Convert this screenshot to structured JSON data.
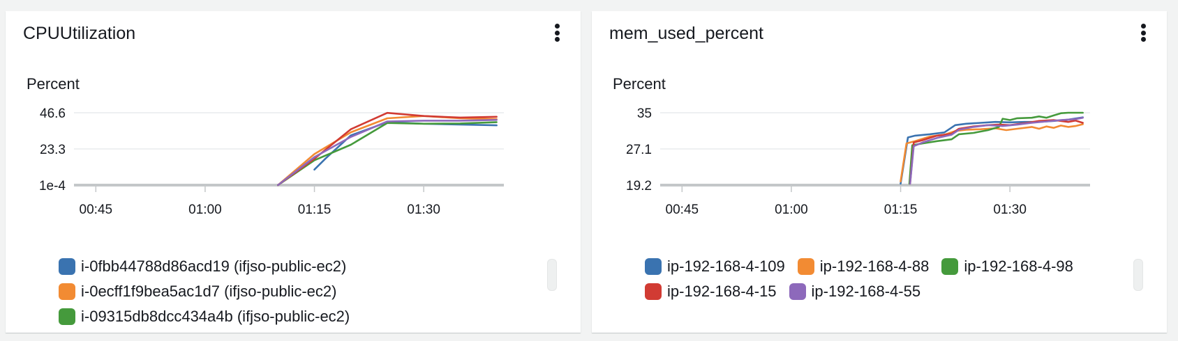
{
  "widgets": [
    {
      "title": "CPUUtilization",
      "y_unit": "Percent",
      "legend": [
        {
          "label": "i-0fbb44788d86acd19 (ifjso-public-ec2)",
          "color": "#3a73b0"
        },
        {
          "label": "i-0ecff1f9bea5ac1d7 (ifjso-public-ec2)",
          "color": "#f28b33"
        },
        {
          "label": "i-09315db8dcc434a4b (ifjso-public-ec2)",
          "color": "#459a3c"
        }
      ]
    },
    {
      "title": "mem_used_percent",
      "y_unit": "Percent",
      "legend": [
        {
          "label": "ip-192-168-4-109",
          "color": "#3a73b0"
        },
        {
          "label": "ip-192-168-4-88",
          "color": "#f28b33"
        },
        {
          "label": "ip-192-168-4-98",
          "color": "#459a3c"
        },
        {
          "label": "ip-192-168-4-15",
          "color": "#d13b33"
        },
        {
          "label": "ip-192-168-4-55",
          "color": "#8d69bb"
        }
      ]
    }
  ],
  "chart_data": [
    {
      "type": "line",
      "title": "CPUUtilization",
      "ylabel": "Percent",
      "x_unit": "minutes (time of day)",
      "x_ticks": [
        {
          "v": 45,
          "label": "00:45"
        },
        {
          "v": 60,
          "label": "01:00"
        },
        {
          "v": 75,
          "label": "01:15"
        },
        {
          "v": 90,
          "label": "01:30"
        }
      ],
      "y_ticks": [
        {
          "v": 0.0001,
          "label": "1e-4"
        },
        {
          "v": 23.3,
          "label": "23.3"
        },
        {
          "v": 46.6,
          "label": "46.6"
        }
      ],
      "xlim": [
        42,
        101
      ],
      "ylim": [
        0,
        46.6
      ],
      "grid": true,
      "legend_position": "bottom",
      "series": [
        {
          "name": "i-0fbb44788d86acd19 (ifjso-public-ec2)",
          "color": "#3a73b0",
          "points": [
            [
              75,
              10
            ],
            [
              76.5,
              17
            ],
            [
              80,
              32
            ],
            [
              85,
              40.5
            ],
            [
              90,
              39.5
            ],
            [
              100,
              38.5
            ]
          ]
        },
        {
          "name": "i-0ecff1f9bea5ac1d7 (ifjso-public-ec2)",
          "color": "#f28b33",
          "points": [
            [
              70,
              0
            ],
            [
              75,
              20
            ],
            [
              80,
              34
            ],
            [
              85,
              43
            ],
            [
              90,
              44.5
            ],
            [
              95,
              43
            ],
            [
              100,
              42.5
            ]
          ]
        },
        {
          "name": "i-09315db8dcc434a4b (ifjso-public-ec2)",
          "color": "#459a3c",
          "points": [
            [
              70,
              0
            ],
            [
              75,
              16
            ],
            [
              80,
              26
            ],
            [
              85,
              40
            ],
            [
              90,
              39.5
            ],
            [
              95,
              39.7
            ],
            [
              100,
              40.5
            ]
          ]
        },
        {
          "name": "",
          "color": "#d13b33",
          "points": [
            [
              70,
              0
            ],
            [
              75,
              17
            ],
            [
              80,
              36
            ],
            [
              85,
              46.5
            ],
            [
              90,
              44.5
            ],
            [
              95,
              43.5
            ],
            [
              100,
              44
            ]
          ]
        },
        {
          "name": "",
          "color": "#8d69bb",
          "points": [
            [
              70,
              0
            ],
            [
              75,
              18
            ],
            [
              80,
              31
            ],
            [
              85,
              41
            ],
            [
              90,
              41.5
            ],
            [
              95,
              41.5
            ],
            [
              100,
              42
            ]
          ]
        }
      ]
    },
    {
      "type": "line",
      "title": "mem_used_percent",
      "ylabel": "Percent",
      "x_unit": "minutes (time of day)",
      "x_ticks": [
        {
          "v": 45,
          "label": "00:45"
        },
        {
          "v": 60,
          "label": "01:00"
        },
        {
          "v": 75,
          "label": "01:15"
        },
        {
          "v": 90,
          "label": "01:30"
        }
      ],
      "y_ticks": [
        {
          "v": 19.2,
          "label": "19.2"
        },
        {
          "v": 27.1,
          "label": "27.1"
        },
        {
          "v": 35,
          "label": "35"
        }
      ],
      "xlim": [
        42,
        101
      ],
      "ylim": [
        19.2,
        35
      ],
      "grid": true,
      "legend_position": "bottom",
      "series": [
        {
          "name": "ip-192-168-4-109",
          "color": "#3a73b0",
          "points": [
            [
              75,
              19.5
            ],
            [
              76,
              29.6
            ],
            [
              77,
              30.0
            ],
            [
              79,
              30.3
            ],
            [
              81,
              30.7
            ],
            [
              82.5,
              32.3
            ],
            [
              84,
              32.6
            ],
            [
              86,
              32.8
            ],
            [
              88,
              33.0
            ],
            [
              90,
              32.9
            ],
            [
              92,
              33.0
            ],
            [
              94,
              33.0
            ],
            [
              96,
              33.2
            ],
            [
              98,
              33.5
            ],
            [
              100,
              34.0
            ]
          ]
        },
        {
          "name": "ip-192-168-4-88",
          "color": "#f28b33",
          "points": [
            [
              75,
              20.0
            ],
            [
              75.8,
              28.3
            ],
            [
              77,
              28.8
            ],
            [
              79,
              29.8
            ],
            [
              81,
              30.2
            ],
            [
              82.5,
              31.0
            ],
            [
              84,
              31.3
            ],
            [
              86,
              31.4
            ],
            [
              88,
              31.6
            ],
            [
              89.5,
              31.2
            ],
            [
              91,
              31.5
            ],
            [
              93,
              31.9
            ],
            [
              94,
              31.5
            ],
            [
              95,
              32.0
            ],
            [
              96,
              31.7
            ],
            [
              97,
              32.2
            ],
            [
              98,
              31.9
            ],
            [
              99,
              32.1
            ],
            [
              100,
              32.5
            ]
          ]
        },
        {
          "name": "ip-192-168-4-98",
          "color": "#459a3c",
          "points": [
            [
              76.2,
              19.5
            ],
            [
              76.6,
              27.9
            ],
            [
              78,
              28.3
            ],
            [
              80,
              28.8
            ],
            [
              82,
              29.2
            ],
            [
              83,
              30.3
            ],
            [
              85,
              30.6
            ],
            [
              87,
              31.2
            ],
            [
              88.5,
              31.9
            ],
            [
              89,
              33.7
            ],
            [
              90,
              33.4
            ],
            [
              91,
              33.8
            ],
            [
              93,
              33.9
            ],
            [
              94,
              34.2
            ],
            [
              95,
              33.9
            ],
            [
              96,
              34.4
            ],
            [
              97,
              34.9
            ],
            [
              98,
              35.0
            ],
            [
              100,
              35.0
            ]
          ]
        },
        {
          "name": "ip-192-168-4-15",
          "color": "#d13b33",
          "points": [
            [
              76.3,
              19.5
            ],
            [
              76.8,
              28.5
            ],
            [
              78,
              29.0
            ],
            [
              80,
              30.0
            ],
            [
              82,
              30.4
            ],
            [
              83,
              31.5
            ],
            [
              85,
              32.0
            ],
            [
              87,
              32.3
            ],
            [
              88.5,
              32.4
            ],
            [
              90,
              32.3
            ],
            [
              92,
              32.7
            ],
            [
              94,
              33.2
            ],
            [
              96,
              33.4
            ],
            [
              98,
              33.0
            ],
            [
              99,
              33.3
            ],
            [
              100,
              32.8
            ]
          ]
        },
        {
          "name": "ip-192-168-4-55",
          "color": "#8d69bb",
          "points": [
            [
              76.3,
              19.5
            ],
            [
              76.8,
              27.7
            ],
            [
              78,
              28.5
            ],
            [
              80,
              29.5
            ],
            [
              82,
              30.2
            ],
            [
              83,
              31.3
            ],
            [
              85,
              31.9
            ],
            [
              87,
              32.3
            ],
            [
              89,
              32.1
            ],
            [
              91,
              32.4
            ],
            [
              93,
              32.8
            ],
            [
              95,
              33.1
            ],
            [
              97,
              33.4
            ],
            [
              99,
              33.6
            ],
            [
              100,
              33.9
            ]
          ]
        }
      ]
    }
  ]
}
